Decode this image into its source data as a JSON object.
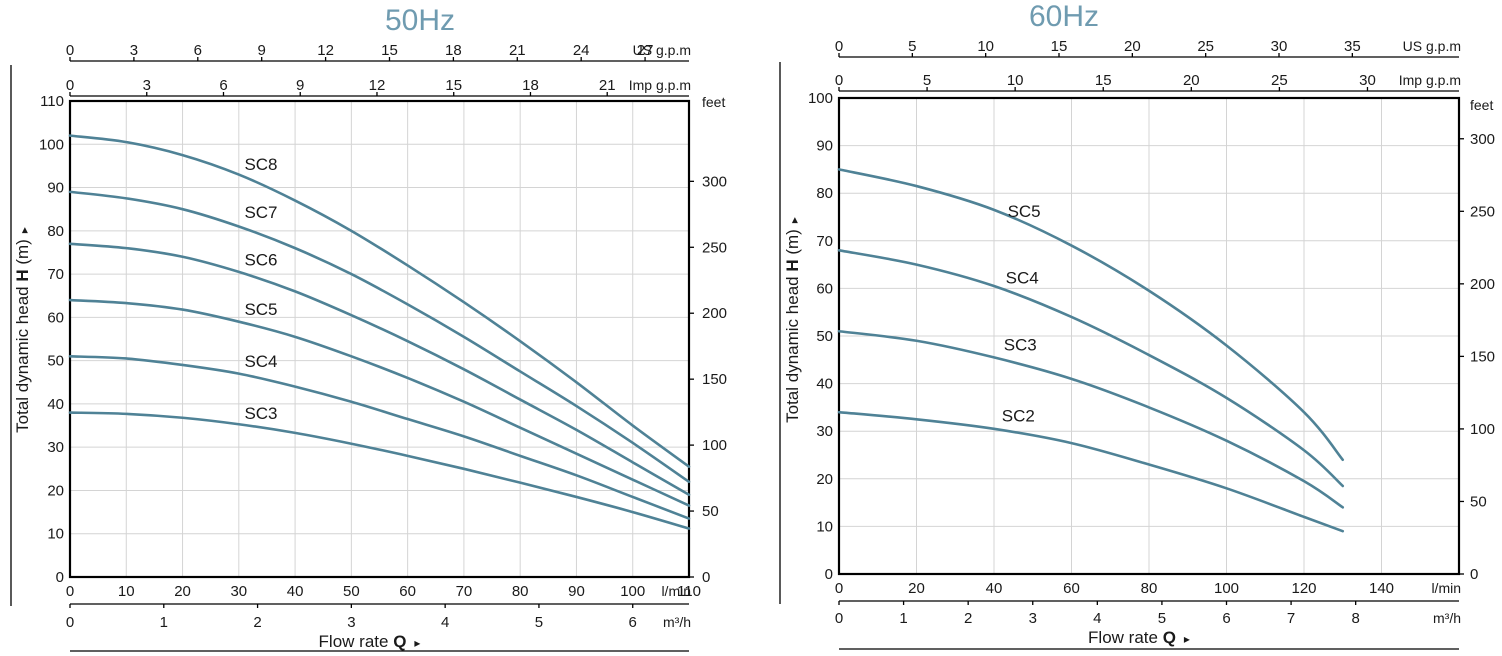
{
  "colors": {
    "curve": "#4f8296",
    "title": "#6f9bb0"
  },
  "chart_data": [
    {
      "type": "line",
      "title": "50Hz",
      "ylabel_prefix": "Total dynamic head ",
      "ylabel_bold": "H",
      "ylabel_suffix": " (m)",
      "xlabel_prefix": "Flow rate ",
      "xlabel_bold": "Q",
      "xlim": [
        0,
        110
      ],
      "ylim": [
        0,
        110
      ],
      "x_unit": "l/min",
      "y_right_unit": "feet",
      "x_ticks": [
        0,
        10,
        20,
        30,
        40,
        50,
        60,
        70,
        80,
        90,
        100,
        110
      ],
      "y_ticks": [
        0,
        10,
        20,
        30,
        40,
        50,
        60,
        70,
        80,
        90,
        100,
        110
      ],
      "us_gpm_unit": "US g.p.m",
      "us_gpm_ticks": [
        0,
        3,
        6,
        9,
        12,
        15,
        18,
        21,
        24,
        27
      ],
      "imp_gpm_unit": "Imp g.p.m",
      "imp_gpm_ticks": [
        0,
        3,
        6,
        9,
        12,
        15,
        18,
        21
      ],
      "m3h_unit": "m³/h",
      "m3h_ticks": [
        0,
        1,
        2,
        3,
        4,
        5,
        6
      ],
      "feet_ticks": [
        0,
        50,
        100,
        150,
        200,
        250,
        300
      ],
      "series": [
        {
          "name": "SC8",
          "label_at": [
            31,
            94
          ],
          "points": [
            [
              0,
              102
            ],
            [
              10,
              100.5
            ],
            [
              20,
              97.5
            ],
            [
              30,
              93
            ],
            [
              40,
              87
            ],
            [
              50,
              80
            ],
            [
              60,
              72
            ],
            [
              70,
              63.5
            ],
            [
              80,
              54.5
            ],
            [
              90,
              45
            ],
            [
              100,
              35
            ],
            [
              110,
              25.5
            ]
          ]
        },
        {
          "name": "SC7",
          "label_at": [
            31,
            83
          ],
          "points": [
            [
              0,
              89
            ],
            [
              10,
              87.5
            ],
            [
              20,
              85
            ],
            [
              30,
              81
            ],
            [
              40,
              76
            ],
            [
              50,
              70
            ],
            [
              60,
              63
            ],
            [
              70,
              55.5
            ],
            [
              80,
              47.5
            ],
            [
              90,
              39.5
            ],
            [
              100,
              31
            ],
            [
              110,
              22
            ]
          ]
        },
        {
          "name": "SC6",
          "label_at": [
            31,
            72
          ],
          "points": [
            [
              0,
              77
            ],
            [
              10,
              76
            ],
            [
              20,
              74
            ],
            [
              30,
              70.5
            ],
            [
              40,
              66
            ],
            [
              50,
              60.5
            ],
            [
              60,
              54.5
            ],
            [
              70,
              48
            ],
            [
              80,
              41
            ],
            [
              90,
              34
            ],
            [
              100,
              26.5
            ],
            [
              110,
              19
            ]
          ]
        },
        {
          "name": "SC5",
          "label_at": [
            31,
            60.5
          ],
          "points": [
            [
              0,
              64
            ],
            [
              10,
              63.3
            ],
            [
              20,
              61.8
            ],
            [
              30,
              59
            ],
            [
              40,
              55.5
            ],
            [
              50,
              51
            ],
            [
              60,
              46
            ],
            [
              70,
              40.5
            ],
            [
              80,
              34.5
            ],
            [
              90,
              28.5
            ],
            [
              100,
              22.5
            ],
            [
              110,
              16.5
            ]
          ]
        },
        {
          "name": "SC4",
          "label_at": [
            31,
            48.5
          ],
          "points": [
            [
              0,
              51
            ],
            [
              10,
              50.5
            ],
            [
              20,
              49
            ],
            [
              30,
              47
            ],
            [
              40,
              44
            ],
            [
              50,
              40.5
            ],
            [
              60,
              36.5
            ],
            [
              70,
              32.5
            ],
            [
              80,
              28
            ],
            [
              90,
              23.5
            ],
            [
              100,
              18.5
            ],
            [
              110,
              13.5
            ]
          ]
        },
        {
          "name": "SC3",
          "label_at": [
            31,
            36.5
          ],
          "points": [
            [
              0,
              38
            ],
            [
              10,
              37.7
            ],
            [
              20,
              36.8
            ],
            [
              30,
              35.3
            ],
            [
              40,
              33.3
            ],
            [
              50,
              30.8
            ],
            [
              60,
              28
            ],
            [
              70,
              25
            ],
            [
              80,
              21.8
            ],
            [
              90,
              18.5
            ],
            [
              100,
              15
            ],
            [
              110,
              11.2
            ]
          ]
        }
      ]
    },
    {
      "type": "line",
      "title": "60Hz",
      "ylabel_prefix": "Total dynamic head ",
      "ylabel_bold": "H",
      "ylabel_suffix": " (m)",
      "xlabel_prefix": "Flow rate ",
      "xlabel_bold": "Q",
      "xlim": [
        0,
        160
      ],
      "ylim": [
        0,
        100
      ],
      "x_unit": "l/min",
      "y_right_unit": "feet",
      "x_ticks": [
        0,
        20,
        40,
        60,
        80,
        100,
        120,
        140
      ],
      "y_ticks": [
        0,
        10,
        20,
        30,
        40,
        50,
        60,
        70,
        80,
        90,
        100
      ],
      "us_gpm_unit": "US g.p.m",
      "us_gpm_ticks": [
        0,
        5,
        10,
        15,
        20,
        25,
        30,
        35
      ],
      "imp_gpm_unit": "Imp g.p.m",
      "imp_gpm_ticks": [
        0,
        5,
        10,
        15,
        20,
        25,
        30
      ],
      "m3h_unit": "m³/h",
      "m3h_ticks": [
        0,
        1,
        2,
        3,
        4,
        5,
        6,
        7,
        8
      ],
      "feet_ticks": [
        0,
        50,
        100,
        150,
        200,
        250,
        300
      ],
      "series": [
        {
          "name": "SC5",
          "label_at": [
            43.5,
            75
          ],
          "points": [
            [
              0,
              85
            ],
            [
              20,
              81.5
            ],
            [
              40,
              76.5
            ],
            [
              60,
              69
            ],
            [
              80,
              59.5
            ],
            [
              100,
              48
            ],
            [
              120,
              34
            ],
            [
              130,
              24
            ]
          ]
        },
        {
          "name": "SC4",
          "label_at": [
            43,
            61
          ],
          "points": [
            [
              0,
              68
            ],
            [
              20,
              65
            ],
            [
              40,
              60.5
            ],
            [
              60,
              54
            ],
            [
              80,
              46
            ],
            [
              100,
              37
            ],
            [
              120,
              26
            ],
            [
              130,
              18.5
            ]
          ]
        },
        {
          "name": "SC3",
          "label_at": [
            42.5,
            47
          ],
          "points": [
            [
              0,
              51
            ],
            [
              20,
              49
            ],
            [
              40,
              45.5
            ],
            [
              60,
              41
            ],
            [
              80,
              35
            ],
            [
              100,
              28
            ],
            [
              120,
              19.5
            ],
            [
              130,
              14
            ]
          ]
        },
        {
          "name": "SC2",
          "label_at": [
            42,
            32
          ],
          "points": [
            [
              0,
              34
            ],
            [
              20,
              32.5
            ],
            [
              40,
              30.5
            ],
            [
              60,
              27.5
            ],
            [
              80,
              23
            ],
            [
              100,
              18
            ],
            [
              120,
              12
            ],
            [
              130,
              9
            ]
          ]
        }
      ]
    }
  ]
}
